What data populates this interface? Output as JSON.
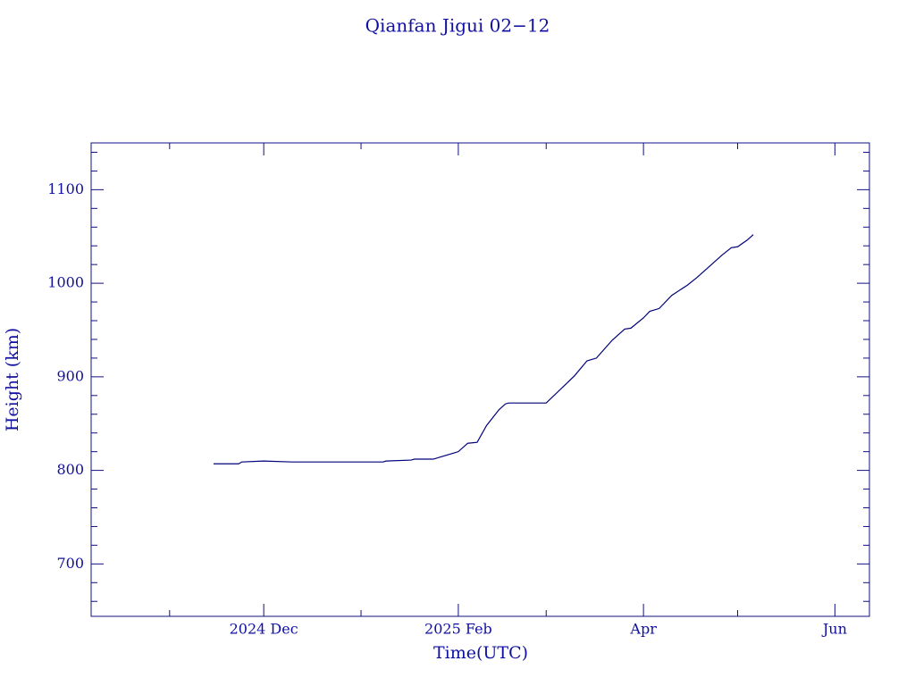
{
  "chart_data": {
    "type": "line",
    "title": "Qianfan Jigui 02−12",
    "xlabel": "Time(UTC)",
    "ylabel": "Height (km)",
    "x": [
      "2024-11-15",
      "2024-11-23",
      "2024-11-24",
      "2024-12-01",
      "2024-12-10",
      "2025-01-08",
      "2025-01-09",
      "2025-01-17",
      "2025-01-18",
      "2025-01-24",
      "2025-02-01",
      "2025-02-04",
      "2025-02-07",
      "2025-02-10",
      "2025-02-14",
      "2025-02-16",
      "2025-02-17",
      "2025-03-01",
      "2025-03-10",
      "2025-03-14",
      "2025-03-17",
      "2025-03-22",
      "2025-03-26",
      "2025-03-28",
      "2025-04-01",
      "2025-04-03",
      "2025-04-06",
      "2025-04-10",
      "2025-04-15",
      "2025-04-18",
      "2025-04-21",
      "2025-04-26",
      "2025-04-29",
      "2025-05-01",
      "2025-05-04",
      "2025-05-06"
    ],
    "series": [
      {
        "name": "Height",
        "color": "#00007a",
        "values": [
          807,
          807,
          809,
          810,
          809,
          809,
          810,
          811,
          812,
          812,
          820,
          829,
          830,
          848,
          865,
          871,
          872,
          872,
          901,
          917,
          920,
          939,
          951,
          952,
          963,
          970,
          973,
          987,
          998,
          1006,
          1015,
          1030,
          1038,
          1039,
          1046,
          1052
        ]
      }
    ],
    "xlim": [
      "2024-10-07",
      "2025-06-12"
    ],
    "xticks": [
      {
        "value": "2024-12-01",
        "label": "2024 Dec"
      },
      {
        "value": "2025-02-01",
        "label": "2025 Feb"
      },
      {
        "value": "2025-04-01",
        "label": "Apr"
      },
      {
        "value": "2025-06-01",
        "label": "Jun"
      }
    ],
    "xminorticks": [
      "2024-11-01",
      "2025-01-01",
      "2025-03-01",
      "2025-05-01"
    ],
    "ylim": [
      644,
      1150
    ],
    "yticks": [
      700,
      800,
      900,
      1000,
      1100
    ],
    "yminorticks": [
      660,
      680,
      720,
      740,
      760,
      780,
      820,
      840,
      860,
      880,
      920,
      940,
      960,
      980,
      1020,
      1040,
      1060,
      1080,
      1120,
      1140
    ]
  }
}
